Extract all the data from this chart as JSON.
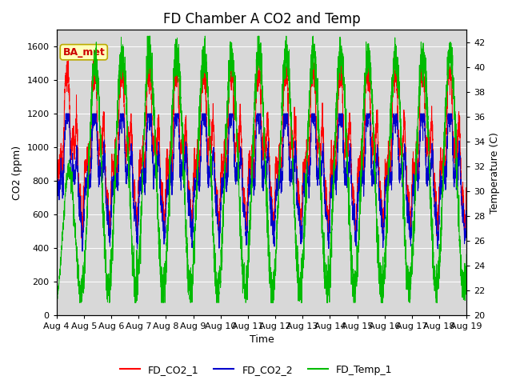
{
  "title": "FD Chamber A CO2 and Temp",
  "xlabel": "Time",
  "ylabel_left": "CO2 (ppm)",
  "ylabel_right": "Temperature (C)",
  "annotation": "BA_met",
  "legend_labels": [
    "FD_CO2_1",
    "FD_CO2_2",
    "FD_Temp_1"
  ],
  "legend_colors": [
    "#ff0000",
    "#0000cc",
    "#00cc00"
  ],
  "co2_ylim": [
    0,
    1700
  ],
  "temp_ylim": [
    20,
    43
  ],
  "co2_yticks": [
    0,
    200,
    400,
    600,
    800,
    1000,
    1200,
    1400,
    1600
  ],
  "temp_yticks": [
    20,
    22,
    24,
    26,
    28,
    30,
    32,
    34,
    36,
    38,
    40,
    42
  ],
  "plot_bg_color": "#d8d8d8",
  "title_fontsize": 12,
  "axis_fontsize": 9,
  "tick_fontsize": 8,
  "n_days": 15,
  "n_points": 4320,
  "figsize": [
    6.4,
    4.8
  ],
  "dpi": 100
}
